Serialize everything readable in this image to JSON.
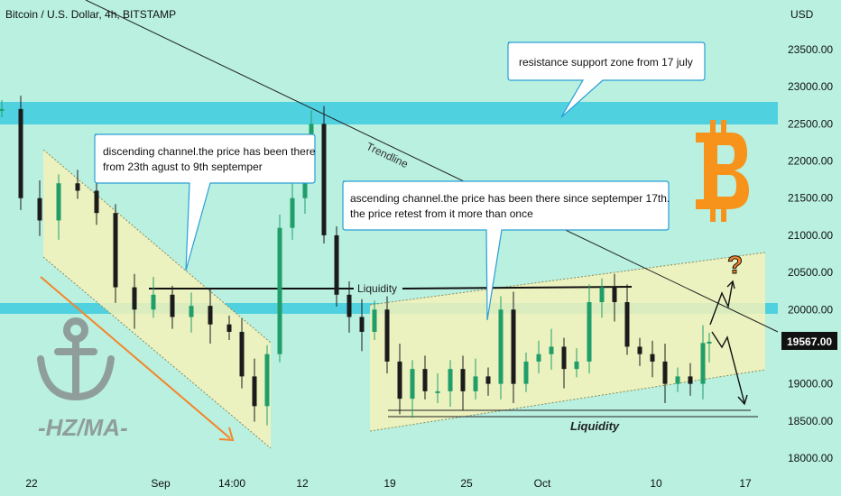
{
  "header": {
    "symbol_title": "Bitcoin / U.S. Dollar, 4h, BITSTAMP"
  },
  "axis": {
    "currency": "USD",
    "y_ticks": [
      "23500.00",
      "23000.00",
      "22500.00",
      "22000.00",
      "21500.00",
      "21000.00",
      "20500.00",
      "20000.00",
      "19000.00",
      "18500.00",
      "18000.00"
    ],
    "x_ticks": [
      "22",
      "Sep",
      "14:00",
      "12",
      "19",
      "25",
      "Oct",
      "10",
      "17"
    ],
    "last_price": "19567.00"
  },
  "annotations": {
    "resistance_note": "resistance support zone from 17 july",
    "descending_note_line1": "discending channel.the price has been there",
    "descending_note_line2": "from 23th agust to 9th septemper",
    "ascending_note_line1": "ascending channel.the price has been there since septemper 17th.",
    "ascending_note_line2": "the price retest from it more than once",
    "trendline_label": "Trendline",
    "liquidity_top": "Liquidity",
    "liquidity_bottom": "Liquidity",
    "question_mark": "?",
    "watermark_text": "-HZ/MA-",
    "bitcoin_logo": "bitcoin-logo"
  },
  "colors": {
    "background": "#b9f0e0",
    "zone": "#4fd1e0",
    "channel_fill": "#f3f2b8",
    "up_candle": "#1f9e6a",
    "down_candle": "#1b1b1b",
    "bitcoin_orange": "#f7931a",
    "arrow_orange": "#f5852a",
    "price_tag": "#111111"
  },
  "chart_data": {
    "type": "candlestick",
    "symbol": "Bitcoin / U.S. Dollar",
    "interval": "4h",
    "exchange": "BITSTAMP",
    "ylim": [
      18000,
      23900
    ],
    "x_ticks": [
      "22",
      "Sep",
      "14:00",
      "12",
      "19",
      "25",
      "Oct",
      "10",
      "17"
    ],
    "last_price": 19567,
    "resistance_zone": [
      22350,
      22650
    ],
    "support_zone": [
      19950,
      20080
    ],
    "liquidity_high": 20320,
    "liquidity_low": 18650,
    "close_path": [
      {
        "x": 0,
        "y": 22700
      },
      {
        "x": 3,
        "y": 21500
      },
      {
        "x": 6,
        "y": 21200
      },
      {
        "x": 9,
        "y": 21700
      },
      {
        "x": 12,
        "y": 21600
      },
      {
        "x": 15,
        "y": 21300
      },
      {
        "x": 18,
        "y": 20300
      },
      {
        "x": 21,
        "y": 20000
      },
      {
        "x": 24,
        "y": 20200
      },
      {
        "x": 27,
        "y": 19900
      },
      {
        "x": 30,
        "y": 20050
      },
      {
        "x": 33,
        "y": 19800
      },
      {
        "x": 36,
        "y": 19700
      },
      {
        "x": 38,
        "y": 19100
      },
      {
        "x": 40,
        "y": 18700
      },
      {
        "x": 42,
        "y": 19400
      },
      {
        "x": 44,
        "y": 21100
      },
      {
        "x": 46,
        "y": 21500
      },
      {
        "x": 48,
        "y": 22000
      },
      {
        "x": 49,
        "y": 22500
      },
      {
        "x": 51,
        "y": 21000
      },
      {
        "x": 53,
        "y": 20200
      },
      {
        "x": 55,
        "y": 19900
      },
      {
        "x": 57,
        "y": 19700
      },
      {
        "x": 59,
        "y": 20000
      },
      {
        "x": 61,
        "y": 19300
      },
      {
        "x": 63,
        "y": 18800
      },
      {
        "x": 65,
        "y": 19200
      },
      {
        "x": 67,
        "y": 18900
      },
      {
        "x": 69,
        "y": 18900
      },
      {
        "x": 71,
        "y": 19200
      },
      {
        "x": 73,
        "y": 18900
      },
      {
        "x": 75,
        "y": 19100
      },
      {
        "x": 77,
        "y": 19000
      },
      {
        "x": 79,
        "y": 20000
      },
      {
        "x": 81,
        "y": 19000
      },
      {
        "x": 83,
        "y": 19300
      },
      {
        "x": 85,
        "y": 19400
      },
      {
        "x": 87,
        "y": 19500
      },
      {
        "x": 89,
        "y": 19200
      },
      {
        "x": 91,
        "y": 19300
      },
      {
        "x": 93,
        "y": 20100
      },
      {
        "x": 95,
        "y": 20300
      },
      {
        "x": 97,
        "y": 20100
      },
      {
        "x": 99,
        "y": 19500
      },
      {
        "x": 101,
        "y": 19400
      },
      {
        "x": 103,
        "y": 19300
      },
      {
        "x": 105,
        "y": 19000
      },
      {
        "x": 107,
        "y": 19100
      },
      {
        "x": 109,
        "y": 19000
      },
      {
        "x": 111,
        "y": 19550
      },
      {
        "x": 112,
        "y": 19567
      }
    ]
  }
}
